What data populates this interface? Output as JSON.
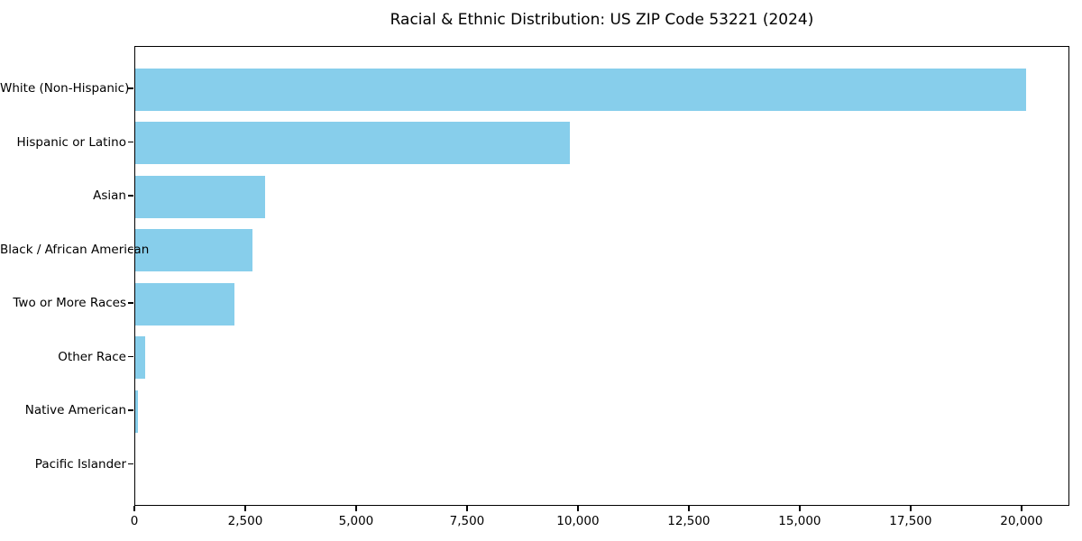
{
  "chart_data": {
    "type": "bar",
    "orientation": "horizontal",
    "title": "Racial & Ethnic Distribution: US ZIP Code 53221 (2024)",
    "categories": [
      "White (Non-Hispanic)",
      "Hispanic or Latino",
      "Asian",
      "Black / African American",
      "Two or More Races",
      "Other Race",
      "Native American",
      "Pacific Islander"
    ],
    "values": [
      20080,
      9800,
      2930,
      2650,
      2240,
      220,
      60,
      0
    ],
    "xlabel": "",
    "ylabel": "",
    "xlim": [
      0,
      21080
    ],
    "xticks": [
      0,
      2500,
      5000,
      7500,
      10000,
      12500,
      15000,
      17500,
      20000
    ],
    "xtick_labels": [
      "0",
      "2,500",
      "5,000",
      "7,500",
      "10,000",
      "12,500",
      "15,000",
      "17,500",
      "20,000"
    ],
    "bar_color": "#87CEEB",
    "text_color": "#000000",
    "spine_color": "#000000",
    "background_color": "#FFFFFF",
    "grid": false,
    "legend": false
  }
}
